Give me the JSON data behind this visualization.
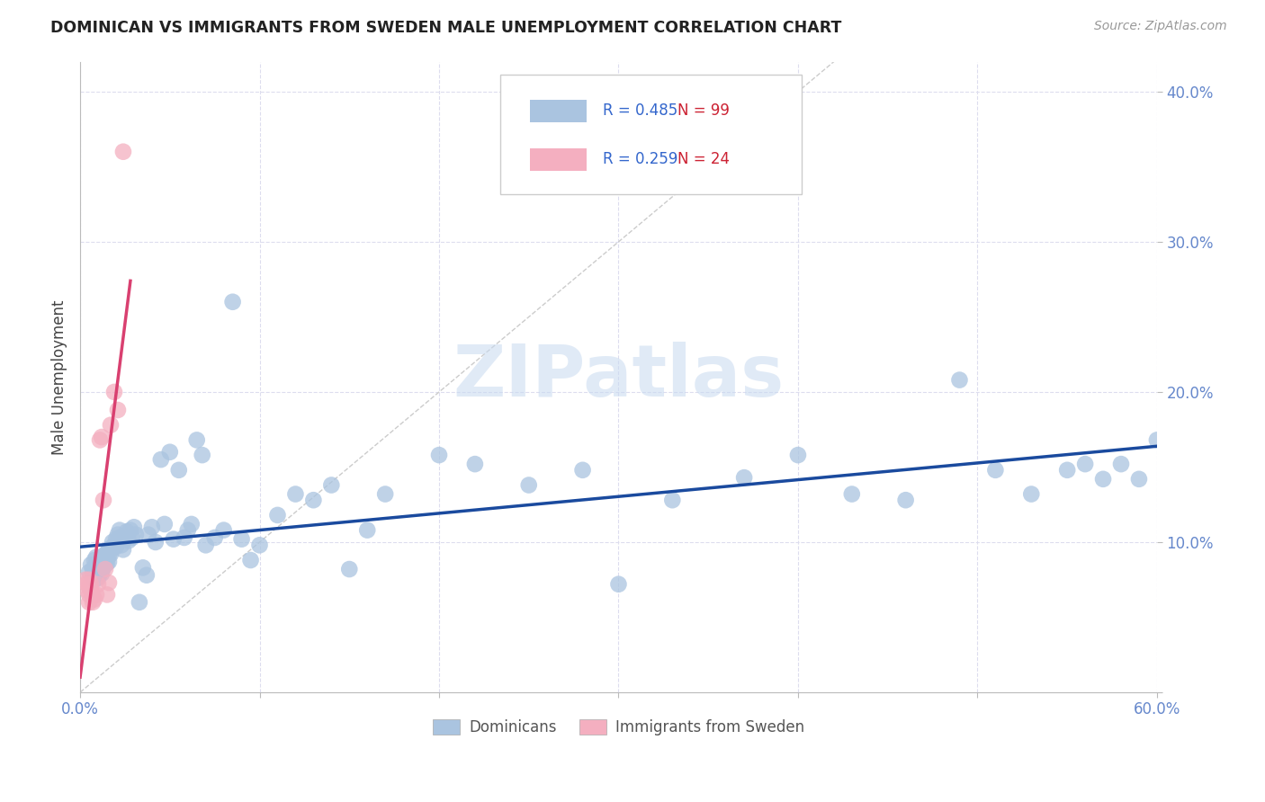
{
  "title": "DOMINICAN VS IMMIGRANTS FROM SWEDEN MALE UNEMPLOYMENT CORRELATION CHART",
  "source": "Source: ZipAtlas.com",
  "ylabel": "Male Unemployment",
  "xlim": [
    0.0,
    0.6
  ],
  "ylim": [
    0.0,
    0.42
  ],
  "R_dominican": 0.485,
  "N_dominican": 99,
  "R_sweden": 0.259,
  "N_sweden": 24,
  "color_dominican": "#aac4e0",
  "color_sweden": "#f4afc0",
  "line_color_dominican": "#1a4a9e",
  "line_color_sweden": "#d94070",
  "grid_color": "#ddddee",
  "watermark_color": "#c8daf0",
  "tick_color": "#6688cc",
  "legend_labels": [
    "Dominicans",
    "Immigrants from Sweden"
  ],
  "dominican_x": [
    0.005,
    0.006,
    0.007,
    0.007,
    0.008,
    0.008,
    0.009,
    0.009,
    0.01,
    0.01,
    0.01,
    0.01,
    0.011,
    0.011,
    0.011,
    0.012,
    0.012,
    0.012,
    0.012,
    0.013,
    0.013,
    0.013,
    0.014,
    0.014,
    0.014,
    0.015,
    0.015,
    0.015,
    0.016,
    0.016,
    0.016,
    0.017,
    0.017,
    0.018,
    0.018,
    0.019,
    0.02,
    0.02,
    0.021,
    0.022,
    0.022,
    0.023,
    0.024,
    0.025,
    0.026,
    0.027,
    0.028,
    0.029,
    0.03,
    0.031,
    0.033,
    0.035,
    0.037,
    0.038,
    0.04,
    0.042,
    0.045,
    0.047,
    0.05,
    0.052,
    0.055,
    0.058,
    0.06,
    0.062,
    0.065,
    0.068,
    0.07,
    0.075,
    0.08,
    0.085,
    0.09,
    0.095,
    0.1,
    0.11,
    0.12,
    0.13,
    0.14,
    0.15,
    0.16,
    0.17,
    0.2,
    0.22,
    0.25,
    0.28,
    0.3,
    0.33,
    0.37,
    0.4,
    0.43,
    0.46,
    0.49,
    0.51,
    0.53,
    0.55,
    0.56,
    0.57,
    0.58,
    0.59,
    0.6
  ],
  "dominican_y": [
    0.08,
    0.085,
    0.082,
    0.078,
    0.088,
    0.075,
    0.085,
    0.09,
    0.08,
    0.078,
    0.083,
    0.076,
    0.087,
    0.082,
    0.079,
    0.088,
    0.085,
    0.082,
    0.079,
    0.09,
    0.087,
    0.083,
    0.092,
    0.088,
    0.085,
    0.093,
    0.089,
    0.086,
    0.095,
    0.091,
    0.087,
    0.096,
    0.092,
    0.1,
    0.096,
    0.098,
    0.102,
    0.097,
    0.105,
    0.108,
    0.103,
    0.098,
    0.095,
    0.102,
    0.107,
    0.101,
    0.108,
    0.103,
    0.11,
    0.105,
    0.06,
    0.083,
    0.078,
    0.105,
    0.11,
    0.1,
    0.155,
    0.112,
    0.16,
    0.102,
    0.148,
    0.103,
    0.108,
    0.112,
    0.168,
    0.158,
    0.098,
    0.103,
    0.108,
    0.26,
    0.102,
    0.088,
    0.098,
    0.118,
    0.132,
    0.128,
    0.138,
    0.082,
    0.108,
    0.132,
    0.158,
    0.152,
    0.138,
    0.148,
    0.072,
    0.128,
    0.143,
    0.158,
    0.132,
    0.128,
    0.208,
    0.148,
    0.132,
    0.148,
    0.152,
    0.142,
    0.152,
    0.142,
    0.168
  ],
  "sweden_x": [
    0.003,
    0.004,
    0.004,
    0.005,
    0.005,
    0.005,
    0.005,
    0.006,
    0.006,
    0.007,
    0.007,
    0.008,
    0.009,
    0.01,
    0.011,
    0.012,
    0.013,
    0.014,
    0.015,
    0.016,
    0.017,
    0.019,
    0.021,
    0.024
  ],
  "sweden_y": [
    0.075,
    0.072,
    0.068,
    0.075,
    0.07,
    0.065,
    0.06,
    0.072,
    0.068,
    0.065,
    0.06,
    0.062,
    0.065,
    0.072,
    0.168,
    0.17,
    0.128,
    0.082,
    0.065,
    0.073,
    0.178,
    0.2,
    0.188,
    0.36
  ]
}
